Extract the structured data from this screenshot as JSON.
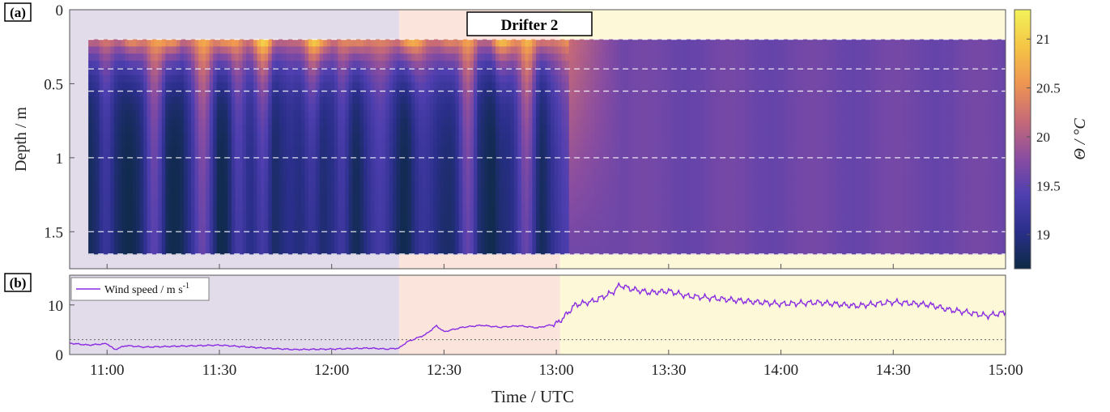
{
  "panel_a_label": "(a)",
  "panel_b_label": "(b)",
  "annotation": "Drifter 2",
  "xlabel": "Time / UTC",
  "colors": {
    "phase1_bg": "#e1dbea",
    "phase2_bg": "#fae4dc",
    "phase3_bg": "#fcf8d8",
    "wind_line": "#8a2be2",
    "colormap": [
      "#0c2a44",
      "#2a2f8a",
      "#4f3fb0",
      "#8a4da0",
      "#c76a78",
      "#ee9552",
      "#f5c545",
      "#f2f25a"
    ]
  },
  "chart_data": [
    {
      "type": "heatmap",
      "ylabel": "Depth / m",
      "colorbar_label": "Θ / °C",
      "x_range": [
        "10:50",
        "15:00"
      ],
      "y_range": [
        0,
        1.75
      ],
      "y_reversed": true,
      "yticks": [
        {
          "value": 0,
          "label": "0"
        },
        {
          "value": 0.5,
          "label": "0.5"
        },
        {
          "value": 1.0,
          "label": "1"
        },
        {
          "value": 1.5,
          "label": "1.5"
        }
      ],
      "clim": [
        18.65,
        21.3
      ],
      "cticks": [
        {
          "value": 19,
          "label": "19"
        },
        {
          "value": 19.5,
          "label": "19.5"
        },
        {
          "value": 20,
          "label": "20"
        },
        {
          "value": 20.5,
          "label": "20.5"
        },
        {
          "value": 21,
          "label": "21"
        }
      ],
      "data_extent": {
        "t_start": "10:55",
        "t_end": "15:00",
        "depth_top": 0.2,
        "depth_bottom": 1.65
      },
      "sensor_depths": [
        0.2,
        0.4,
        0.55,
        1.0,
        1.5,
        1.65
      ],
      "phase_boundaries": [
        "12:18",
        "13:01"
      ]
    },
    {
      "type": "line",
      "series": [
        {
          "name": "Wind speed / m s-1",
          "x": [
            "10:50",
            "10:55",
            "11:00",
            "11:02",
            "11:05",
            "11:10",
            "11:20",
            "11:30",
            "11:40",
            "11:50",
            "12:00",
            "12:10",
            "12:15",
            "12:18",
            "12:20",
            "12:25",
            "12:28",
            "12:30",
            "12:35",
            "12:40",
            "12:45",
            "12:50",
            "12:55",
            "13:00",
            "13:02",
            "13:05",
            "13:10",
            "13:15",
            "13:17",
            "13:20",
            "13:25",
            "13:30",
            "13:35",
            "13:40",
            "13:50",
            "14:00",
            "14:10",
            "14:20",
            "14:30",
            "14:40",
            "14:45",
            "14:50",
            "14:55",
            "15:00"
          ],
          "y": [
            2.3,
            1.9,
            2.2,
            1.0,
            1.8,
            1.5,
            1.7,
            1.9,
            1.4,
            1.0,
            1.1,
            1.3,
            1.1,
            1.3,
            2.5,
            4.0,
            5.8,
            4.6,
            5.5,
            5.9,
            5.5,
            5.8,
            5.4,
            6.2,
            7.5,
            10.0,
            10.8,
            12.5,
            14.0,
            13.2,
            12.5,
            12.8,
            11.8,
            11.5,
            10.8,
            10.2,
            10.5,
            9.8,
            10.6,
            10.0,
            9.0,
            8.5,
            7.8,
            8.5
          ]
        }
      ],
      "yticks": [
        {
          "value": 0,
          "label": "0"
        },
        {
          "value": 10,
          "label": "10"
        }
      ],
      "ylim": [
        0,
        16
      ],
      "reference_line": 3,
      "xticks": [
        {
          "value": "11:00",
          "label": "11:00"
        },
        {
          "value": "11:30",
          "label": "11:30"
        },
        {
          "value": "12:00",
          "label": "12:00"
        },
        {
          "value": "12:30",
          "label": "12:30"
        },
        {
          "value": "13:00",
          "label": "13:00"
        },
        {
          "value": "13:30",
          "label": "13:30"
        },
        {
          "value": "14:00",
          "label": "14:00"
        },
        {
          "value": "14:30",
          "label": "14:30"
        },
        {
          "value": "15:00",
          "label": "15:00"
        }
      ],
      "legend": "top-left"
    }
  ]
}
